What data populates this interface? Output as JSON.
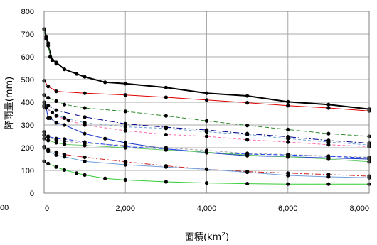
{
  "chart_data": {
    "type": "line",
    "title": "",
    "xlabel": "面積(km",
    "xlabel_sup": "2",
    "xlabel_close": ")",
    "ylabel": "降雨量(mm)",
    "xlim": [
      0,
      8000
    ],
    "ylim": [
      0,
      800
    ],
    "grid": true,
    "legend": "none",
    "x_ticks": [
      0,
      2000,
      4000,
      6000,
      8000
    ],
    "x_tick_labels": [
      "0",
      "2,000",
      "4,000",
      "6,000",
      "8,000"
    ],
    "y_ticks": [
      0,
      100,
      200,
      300,
      400,
      500,
      600,
      700,
      800
    ],
    "y_tick_labels": [
      "0",
      "100",
      "200",
      "300",
      "400",
      "500",
      "600",
      "700",
      "800"
    ],
    "stray_label": "00",
    "series": [
      {
        "color": "#000000",
        "dash": "solid",
        "width": 2.0,
        "points": [
          [
            0,
            722
          ],
          [
            50,
            690
          ],
          [
            100,
            650
          ],
          [
            200,
            585
          ],
          [
            300,
            575
          ],
          [
            500,
            545
          ],
          [
            800,
            525
          ],
          [
            1000,
            512
          ],
          [
            1500,
            488
          ],
          [
            2000,
            482
          ],
          [
            3000,
            465
          ],
          [
            4000,
            440
          ],
          [
            5000,
            428
          ],
          [
            6000,
            402
          ],
          [
            7000,
            390
          ],
          [
            8000,
            370
          ]
        ]
      },
      {
        "color": "#2e8b2e",
        "dash": "6,3",
        "width": 1.0,
        "points": [
          [
            0,
            722
          ],
          [
            50,
            680
          ],
          [
            100,
            660
          ],
          [
            150,
            600
          ],
          [
            200,
            585
          ],
          [
            300,
            570
          ]
        ]
      },
      {
        "color": "#e00000",
        "dash": "solid",
        "width": 1.0,
        "points": [
          [
            0,
            495
          ],
          [
            100,
            470
          ],
          [
            300,
            448
          ],
          [
            1000,
            440
          ],
          [
            2000,
            432
          ],
          [
            3000,
            422
          ],
          [
            4000,
            410
          ],
          [
            5000,
            398
          ],
          [
            6000,
            385
          ],
          [
            7000,
            375
          ],
          [
            8000,
            362
          ]
        ]
      },
      {
        "color": "#2e8b2e",
        "dash": "6,3",
        "width": 1.0,
        "points": [
          [
            0,
            432
          ],
          [
            100,
            420
          ],
          [
            300,
            405
          ],
          [
            500,
            390
          ],
          [
            1000,
            375
          ],
          [
            2000,
            360
          ],
          [
            3000,
            340
          ],
          [
            4000,
            318
          ],
          [
            5000,
            298
          ],
          [
            6000,
            280
          ],
          [
            7000,
            262
          ],
          [
            8000,
            250
          ]
        ]
      },
      {
        "color": "#00008b",
        "dash": "8,3,2,3",
        "width": 1.0,
        "points": [
          [
            0,
            400
          ],
          [
            100,
            385
          ],
          [
            300,
            365
          ],
          [
            1000,
            335
          ],
          [
            2000,
            305
          ],
          [
            3000,
            290
          ],
          [
            4000,
            278
          ],
          [
            5000,
            262
          ],
          [
            6000,
            248
          ],
          [
            7000,
            232
          ],
          [
            8000,
            220
          ]
        ]
      },
      {
        "color": "#6fa0d8",
        "dash": "4,3",
        "width": 1.0,
        "points": [
          [
            0,
            385
          ],
          [
            200,
            355
          ],
          [
            500,
            330
          ],
          [
            1000,
            310
          ],
          [
            2000,
            292
          ],
          [
            3000,
            285
          ],
          [
            4000,
            270
          ],
          [
            5000,
            258
          ],
          [
            6000,
            240
          ],
          [
            7000,
            225
          ],
          [
            8000,
            212
          ]
        ]
      },
      {
        "color": "#ff66aa",
        "dash": "4,3",
        "width": 1.0,
        "points": [
          [
            0,
            380
          ],
          [
            300,
            340
          ],
          [
            600,
            320
          ],
          [
            1000,
            300
          ],
          [
            2000,
            275
          ],
          [
            3000,
            258
          ],
          [
            4000,
            250
          ],
          [
            5000,
            235
          ],
          [
            6000,
            225
          ],
          [
            7000,
            213
          ],
          [
            8000,
            205
          ]
        ]
      },
      {
        "color": "#1030c0",
        "dash": "solid",
        "width": 1.0,
        "points": [
          [
            0,
            380
          ],
          [
            50,
            375
          ],
          [
            100,
            330
          ],
          [
            150,
            330
          ],
          [
            300,
            310
          ],
          [
            500,
            300
          ],
          [
            1000,
            262
          ],
          [
            1500,
            240
          ],
          [
            2000,
            222
          ],
          [
            3000,
            195
          ],
          [
            4000,
            178
          ],
          [
            5000,
            165
          ],
          [
            6000,
            160
          ],
          [
            7000,
            155
          ],
          [
            8000,
            150
          ]
        ]
      },
      {
        "color": "#a0a0a0",
        "dash": "4,3",
        "width": 1.0,
        "points": [
          [
            0,
            270
          ],
          [
            100,
            245
          ],
          [
            300,
            235
          ],
          [
            500,
            228
          ],
          [
            1000,
            220
          ],
          [
            2000,
            210
          ],
          [
            3000,
            200
          ],
          [
            4000,
            188
          ],
          [
            5000,
            175
          ],
          [
            6000,
            170
          ],
          [
            7000,
            163
          ],
          [
            8000,
            158
          ]
        ]
      },
      {
        "color": "#2040ff",
        "dash": "6,3",
        "width": 1.0,
        "points": [
          [
            0,
            255
          ],
          [
            100,
            250
          ],
          [
            300,
            240
          ],
          [
            500,
            238
          ],
          [
            1000,
            225
          ],
          [
            2000,
            205
          ],
          [
            3000,
            195
          ],
          [
            4000,
            180
          ],
          [
            5000,
            172
          ],
          [
            6000,
            168
          ],
          [
            7000,
            162
          ],
          [
            8000,
            155
          ]
        ]
      },
      {
        "color": "#66cc66",
        "dash": "solid",
        "width": 1.0,
        "points": [
          [
            0,
            240
          ],
          [
            100,
            232
          ],
          [
            300,
            222
          ],
          [
            500,
            215
          ],
          [
            1000,
            210
          ],
          [
            2000,
            200
          ],
          [
            3000,
            190
          ],
          [
            4000,
            180
          ],
          [
            5000,
            168
          ],
          [
            6000,
            160
          ],
          [
            7000,
            150
          ],
          [
            8000,
            138
          ]
        ]
      },
      {
        "color": "#cc2222",
        "dash": "8,3,2,3",
        "width": 1.0,
        "points": [
          [
            0,
            200
          ],
          [
            100,
            190
          ],
          [
            300,
            180
          ],
          [
            500,
            170
          ],
          [
            1000,
            158
          ],
          [
            2000,
            138
          ],
          [
            3000,
            120
          ],
          [
            4000,
            105
          ],
          [
            5000,
            95
          ],
          [
            6000,
            88
          ],
          [
            7000,
            82
          ],
          [
            8000,
            75
          ]
        ]
      },
      {
        "color": "#6fa0d8",
        "dash": "solid",
        "width": 1.0,
        "points": [
          [
            0,
            205
          ],
          [
            100,
            185
          ],
          [
            300,
            168
          ],
          [
            500,
            160
          ],
          [
            1000,
            140
          ],
          [
            2000,
            125
          ],
          [
            3000,
            115
          ],
          [
            4000,
            105
          ],
          [
            5000,
            92
          ],
          [
            6000,
            78
          ],
          [
            7000,
            72
          ],
          [
            8000,
            68
          ]
        ]
      },
      {
        "color": "#33cc33",
        "dash": "solid",
        "width": 1.0,
        "points": [
          [
            0,
            140
          ],
          [
            100,
            130
          ],
          [
            300,
            115
          ],
          [
            500,
            102
          ],
          [
            800,
            88
          ],
          [
            1000,
            80
          ],
          [
            1500,
            65
          ],
          [
            2000,
            58
          ],
          [
            3000,
            50
          ],
          [
            4000,
            45
          ],
          [
            5000,
            42
          ],
          [
            6000,
            40
          ],
          [
            7000,
            40
          ],
          [
            8000,
            40
          ]
        ]
      }
    ]
  }
}
